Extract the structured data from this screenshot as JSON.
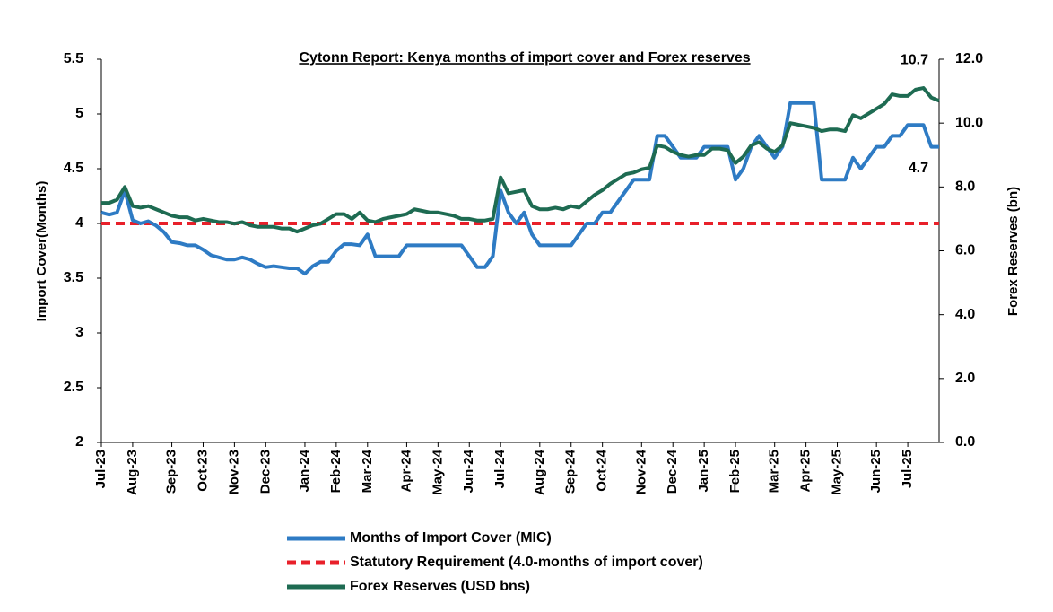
{
  "chart_data": {
    "type": "line",
    "title": "Cytonn Report: Kenya months of import cover and Forex reserves",
    "y_label": "Import Cover(Months)",
    "y2_label": "Forex Reserves (bn)",
    "categories": [
      "Jul-23",
      null,
      null,
      null,
      "Aug-23",
      null,
      null,
      null,
      null,
      "Sep-23",
      null,
      null,
      null,
      "Oct-23",
      null,
      null,
      null,
      "Nov-23",
      null,
      null,
      null,
      "Dec-23",
      null,
      null,
      null,
      null,
      "Jan-24",
      null,
      null,
      null,
      "Feb-24",
      null,
      null,
      null,
      "Mar-24",
      null,
      null,
      null,
      null,
      "Apr-24",
      null,
      null,
      null,
      "May-24",
      null,
      null,
      null,
      "Jun-24",
      null,
      null,
      null,
      "Jul-24",
      null,
      null,
      null,
      null,
      "Aug-24",
      null,
      null,
      null,
      "Sep-24",
      null,
      null,
      null,
      "Oct-24",
      null,
      null,
      null,
      null,
      "Nov-24",
      null,
      null,
      null,
      "Dec-24",
      null,
      null,
      null,
      "Jan-25",
      null,
      null,
      null,
      "Feb-25",
      null,
      null,
      null,
      null,
      "Mar-25",
      null,
      null,
      null,
      "Apr-25",
      null,
      null,
      null,
      "May-25",
      null,
      null,
      null,
      null,
      "Jun-25",
      null,
      null,
      null,
      "Jul-25",
      null,
      null,
      null,
      null
    ],
    "series": [
      {
        "name": "Months of Import Cover (MIC)",
        "color": "#2e7bc4",
        "axis": "y",
        "values": [
          4.1,
          4.08,
          4.1,
          4.3,
          4.03,
          4.0,
          4.02,
          3.98,
          3.92,
          3.83,
          3.82,
          3.8,
          3.8,
          3.76,
          3.71,
          3.69,
          3.67,
          3.67,
          3.69,
          3.67,
          3.63,
          3.6,
          3.61,
          3.6,
          3.59,
          3.59,
          3.54,
          3.61,
          3.65,
          3.65,
          3.75,
          3.81,
          3.81,
          3.8,
          3.9,
          3.7,
          3.7,
          3.7,
          3.7,
          3.8,
          3.8,
          3.8,
          3.8,
          3.8,
          3.8,
          3.8,
          3.8,
          3.7,
          3.6,
          3.6,
          3.7,
          4.3,
          4.1,
          4.0,
          4.1,
          3.9,
          3.8,
          3.8,
          3.8,
          3.8,
          3.8,
          3.9,
          4.0,
          4.0,
          4.1,
          4.1,
          4.2,
          4.3,
          4.4,
          4.4,
          4.4,
          4.8,
          4.8,
          4.7,
          4.6,
          4.6,
          4.6,
          4.7,
          4.7,
          4.7,
          4.7,
          4.4,
          4.5,
          4.7,
          4.8,
          4.7,
          4.6,
          4.7,
          5.1,
          5.1,
          5.1,
          5.1,
          4.4,
          4.4,
          4.4,
          4.4,
          4.6,
          4.5,
          4.6,
          4.7,
          4.7,
          4.8,
          4.8,
          4.9,
          4.9,
          4.9,
          4.7,
          4.7
        ]
      },
      {
        "name": "Forex Reserves (USD bns)",
        "color": "#1e6b52",
        "axis": "y2",
        "values": [
          7.5,
          7.5,
          7.6,
          8.0,
          7.4,
          7.35,
          7.4,
          7.3,
          7.2,
          7.1,
          7.05,
          7.05,
          6.95,
          7.0,
          6.95,
          6.9,
          6.9,
          6.85,
          6.9,
          6.8,
          6.75,
          6.75,
          6.75,
          6.7,
          6.7,
          6.6,
          6.7,
          6.8,
          6.85,
          7.0,
          7.15,
          7.15,
          7.0,
          7.2,
          6.95,
          6.9,
          7.0,
          7.05,
          7.1,
          7.15,
          7.3,
          7.25,
          7.2,
          7.2,
          7.15,
          7.1,
          7.0,
          7.0,
          6.95,
          6.95,
          7.0,
          8.3,
          7.8,
          7.85,
          7.9,
          7.4,
          7.3,
          7.3,
          7.35,
          7.3,
          7.4,
          7.35,
          7.55,
          7.75,
          7.9,
          8.1,
          8.25,
          8.4,
          8.45,
          8.55,
          8.6,
          9.3,
          9.25,
          9.1,
          9.0,
          8.95,
          9.0,
          9.0,
          9.2,
          9.2,
          9.15,
          8.75,
          8.95,
          9.3,
          9.4,
          9.2,
          9.1,
          9.3,
          10.0,
          9.95,
          9.9,
          9.85,
          9.75,
          9.8,
          9.8,
          9.75,
          10.25,
          10.15,
          10.3,
          10.45,
          10.6,
          10.9,
          10.85,
          10.85,
          11.05,
          11.1,
          10.8,
          10.7
        ]
      }
    ],
    "reference_line": {
      "name": "Statutory Requirement (4.0-months of import cover)",
      "value": 4,
      "color": "#e8202a"
    },
    "ylim": [
      2,
      5.5
    ],
    "yticks": [
      2,
      2.5,
      3,
      3.5,
      4,
      4.5,
      5,
      5.5
    ],
    "y2lim": [
      0,
      12
    ],
    "y2ticks": [
      {
        "value": 0,
        "label": "0.0"
      },
      {
        "value": 2,
        "label": "2.0"
      },
      {
        "value": 4,
        "label": "4.0"
      },
      {
        "value": 6,
        "label": "6.0"
      },
      {
        "value": 8,
        "label": "8.0"
      },
      {
        "value": 10,
        "label": "10.0"
      },
      {
        "value": 12,
        "label": "12.0"
      }
    ],
    "legend": "bottom"
  }
}
